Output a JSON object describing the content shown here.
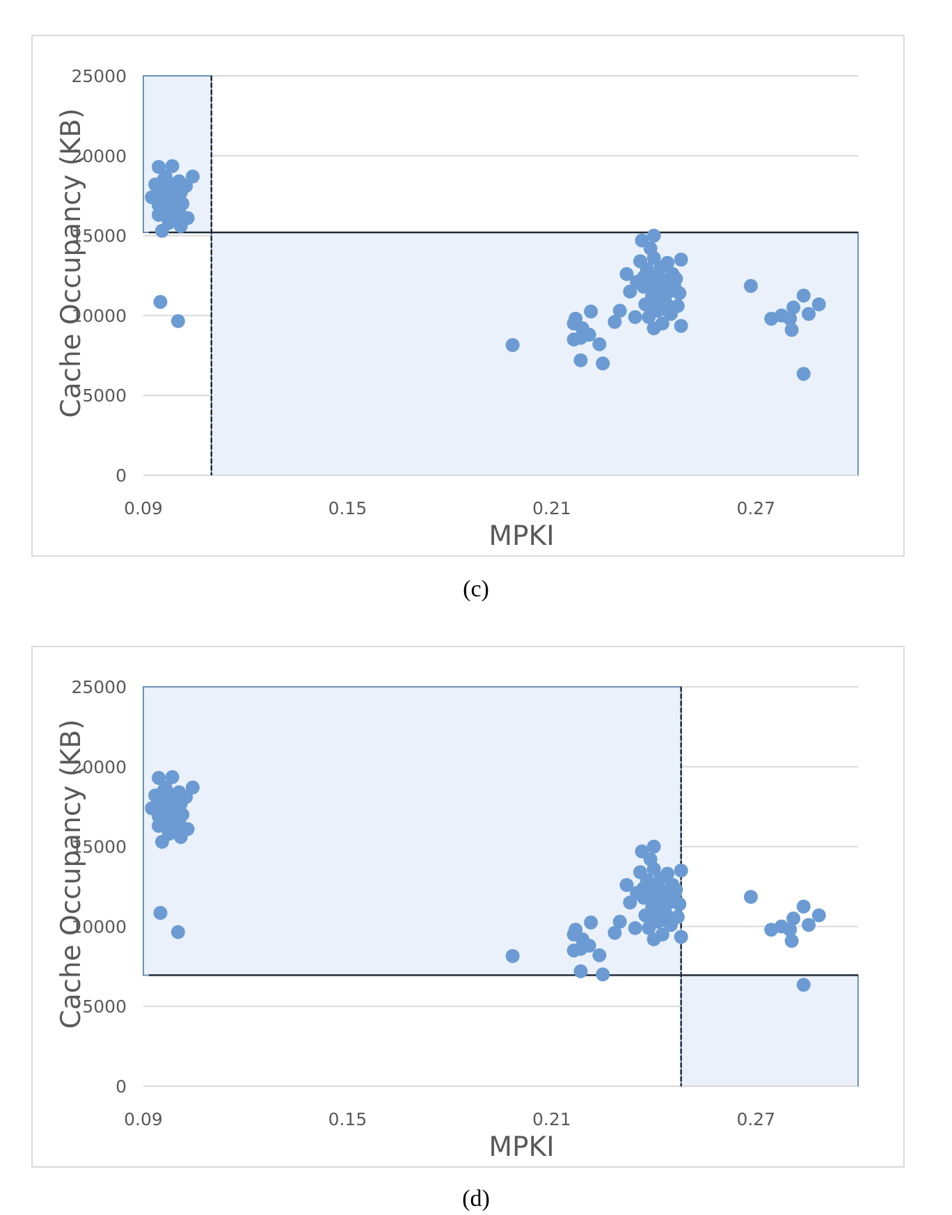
{
  "chart_data": [
    {
      "type": "scatter",
      "caption": "(c)",
      "xlabel": "MPKI",
      "ylabel": "Cache Occupancy (KB)",
      "xlim": [
        0.09,
        0.3
      ],
      "ylim": [
        0,
        25000
      ],
      "xticks": [
        "0.09",
        "0.15",
        "0.21",
        "0.27"
      ],
      "xtick_values": [
        0.09,
        0.15,
        0.21,
        0.27
      ],
      "yticks": [
        "0",
        "5000",
        "10000",
        "15000",
        "20000",
        "25000"
      ],
      "ytick_values": [
        0,
        5000,
        10000,
        15000,
        20000,
        25000
      ],
      "grid": "horizontal",
      "regions": [
        {
          "x0": 0.09,
          "x1": 0.11,
          "y0": 15200,
          "y1": 25000
        },
        {
          "x0": 0.11,
          "x1": 0.3,
          "y0": 0,
          "y1": 15200
        }
      ],
      "threshold_x": 0.11,
      "threshold_y": 15200,
      "points": [
        [
          0.0945,
          19300
        ],
        [
          0.0985,
          19350
        ],
        [
          0.0965,
          18700
        ],
        [
          0.1005,
          18400
        ],
        [
          0.1025,
          18100
        ],
        [
          0.1045,
          18700
        ],
        [
          0.0935,
          18200
        ],
        [
          0.0955,
          17900
        ],
        [
          0.0975,
          17600
        ],
        [
          0.0995,
          17300
        ],
        [
          0.1015,
          17000
        ],
        [
          0.0945,
          17500
        ],
        [
          0.0965,
          17100
        ],
        [
          0.0985,
          16800
        ],
        [
          0.0925,
          17400
        ],
        [
          0.0945,
          16900
        ],
        [
          0.1005,
          16500
        ],
        [
          0.0965,
          16300
        ],
        [
          0.0985,
          16100
        ],
        [
          0.103,
          16100
        ],
        [
          0.0945,
          16300
        ],
        [
          0.0955,
          15300
        ],
        [
          0.0975,
          15800
        ],
        [
          0.101,
          15600
        ],
        [
          0.0995,
          15900
        ],
        [
          0.0975,
          18300
        ],
        [
          0.0995,
          18000
        ],
        [
          0.101,
          17700
        ],
        [
          0.096,
          18500
        ],
        [
          0.0975,
          16500
        ],
        [
          0.095,
          10850
        ],
        [
          0.1002,
          9650
        ],
        [
          0.1985,
          8150
        ],
        [
          0.2165,
          9500
        ],
        [
          0.217,
          9800
        ],
        [
          0.2165,
          8500
        ],
        [
          0.2185,
          8600
        ],
        [
          0.219,
          9200
        ],
        [
          0.221,
          8800
        ],
        [
          0.224,
          8200
        ],
        [
          0.225,
          7000
        ],
        [
          0.2185,
          7200
        ],
        [
          0.2215,
          10250
        ],
        [
          0.2285,
          9600
        ],
        [
          0.23,
          10300
        ],
        [
          0.232,
          12600
        ],
        [
          0.233,
          11500
        ],
        [
          0.2345,
          9900
        ],
        [
          0.235,
          12100
        ],
        [
          0.236,
          13400
        ],
        [
          0.2365,
          14700
        ],
        [
          0.237,
          11800
        ],
        [
          0.2375,
          10700
        ],
        [
          0.238,
          12900
        ],
        [
          0.2385,
          9900
        ],
        [
          0.239,
          14200
        ],
        [
          0.2395,
          11200
        ],
        [
          0.24,
          15000
        ],
        [
          0.24,
          13600
        ],
        [
          0.2405,
          12500
        ],
        [
          0.241,
          10300
        ],
        [
          0.2415,
          11900
        ],
        [
          0.242,
          13000
        ],
        [
          0.2425,
          9500
        ],
        [
          0.243,
          12200
        ],
        [
          0.2435,
          10800
        ],
        [
          0.244,
          13300
        ],
        [
          0.2445,
          11500
        ],
        [
          0.245,
          10100
        ],
        [
          0.2455,
          12600
        ],
        [
          0.246,
          11900
        ],
        [
          0.2465,
          12300
        ],
        [
          0.247,
          10600
        ],
        [
          0.2475,
          11400
        ],
        [
          0.248,
          13500
        ],
        [
          0.248,
          9350
        ],
        [
          0.24,
          9200
        ],
        [
          0.2385,
          10600
        ],
        [
          0.2415,
          10900
        ],
        [
          0.2395,
          12000
        ],
        [
          0.243,
          11000
        ],
        [
          0.237,
          12400
        ],
        [
          0.245,
          11800
        ],
        [
          0.2405,
          11400
        ],
        [
          0.2425,
          10400
        ],
        [
          0.2685,
          11850
        ],
        [
          0.2745,
          9800
        ],
        [
          0.2775,
          10000
        ],
        [
          0.28,
          9800
        ],
        [
          0.2805,
          9100
        ],
        [
          0.281,
          10500
        ],
        [
          0.284,
          11250
        ],
        [
          0.2855,
          10100
        ],
        [
          0.2885,
          10700
        ],
        [
          0.284,
          6350
        ]
      ]
    },
    {
      "type": "scatter",
      "caption": "(d)",
      "xlabel": "MPKI",
      "ylabel": "Cache Occupancy (KB)",
      "xlim": [
        0.09,
        0.3
      ],
      "ylim": [
        0,
        25000
      ],
      "xticks": [
        "0.09",
        "0.15",
        "0.21",
        "0.27"
      ],
      "xtick_values": [
        0.09,
        0.15,
        0.21,
        0.27
      ],
      "yticks": [
        "0",
        "5000",
        "10000",
        "15000",
        "20000",
        "25000"
      ],
      "ytick_values": [
        0,
        5000,
        10000,
        15000,
        20000,
        25000
      ],
      "grid": "horizontal",
      "regions": [
        {
          "x0": 0.09,
          "x1": 0.248,
          "y0": 6950,
          "y1": 25000
        },
        {
          "x0": 0.248,
          "x1": 0.3,
          "y0": 0,
          "y1": 6950
        }
      ],
      "threshold_x": 0.248,
      "threshold_y": 6950,
      "points": [
        [
          0.0945,
          19300
        ],
        [
          0.0985,
          19350
        ],
        [
          0.0965,
          18700
        ],
        [
          0.1005,
          18400
        ],
        [
          0.1025,
          18100
        ],
        [
          0.1045,
          18700
        ],
        [
          0.0935,
          18200
        ],
        [
          0.0955,
          17900
        ],
        [
          0.0975,
          17600
        ],
        [
          0.0995,
          17300
        ],
        [
          0.1015,
          17000
        ],
        [
          0.0945,
          17500
        ],
        [
          0.0965,
          17100
        ],
        [
          0.0985,
          16800
        ],
        [
          0.0925,
          17400
        ],
        [
          0.0945,
          16900
        ],
        [
          0.1005,
          16500
        ],
        [
          0.0965,
          16300
        ],
        [
          0.0985,
          16100
        ],
        [
          0.103,
          16100
        ],
        [
          0.0945,
          16300
        ],
        [
          0.0955,
          15300
        ],
        [
          0.0975,
          15800
        ],
        [
          0.101,
          15600
        ],
        [
          0.0995,
          15900
        ],
        [
          0.0975,
          18300
        ],
        [
          0.0995,
          18000
        ],
        [
          0.101,
          17700
        ],
        [
          0.096,
          18500
        ],
        [
          0.0975,
          16500
        ],
        [
          0.095,
          10850
        ],
        [
          0.1002,
          9650
        ],
        [
          0.1985,
          8150
        ],
        [
          0.2165,
          9500
        ],
        [
          0.217,
          9800
        ],
        [
          0.2165,
          8500
        ],
        [
          0.2185,
          8600
        ],
        [
          0.219,
          9200
        ],
        [
          0.221,
          8800
        ],
        [
          0.224,
          8200
        ],
        [
          0.225,
          7000
        ],
        [
          0.2185,
          7200
        ],
        [
          0.2215,
          10250
        ],
        [
          0.2285,
          9600
        ],
        [
          0.23,
          10300
        ],
        [
          0.232,
          12600
        ],
        [
          0.233,
          11500
        ],
        [
          0.2345,
          9900
        ],
        [
          0.235,
          12100
        ],
        [
          0.236,
          13400
        ],
        [
          0.2365,
          14700
        ],
        [
          0.237,
          11800
        ],
        [
          0.2375,
          10700
        ],
        [
          0.238,
          12900
        ],
        [
          0.2385,
          9900
        ],
        [
          0.239,
          14200
        ],
        [
          0.2395,
          11200
        ],
        [
          0.24,
          15000
        ],
        [
          0.24,
          13600
        ],
        [
          0.2405,
          12500
        ],
        [
          0.241,
          10300
        ],
        [
          0.2415,
          11900
        ],
        [
          0.242,
          13000
        ],
        [
          0.2425,
          9500
        ],
        [
          0.243,
          12200
        ],
        [
          0.2435,
          10800
        ],
        [
          0.244,
          13300
        ],
        [
          0.2445,
          11500
        ],
        [
          0.245,
          10100
        ],
        [
          0.2455,
          12600
        ],
        [
          0.246,
          11900
        ],
        [
          0.2465,
          12300
        ],
        [
          0.247,
          10600
        ],
        [
          0.2475,
          11400
        ],
        [
          0.248,
          13500
        ],
        [
          0.248,
          9350
        ],
        [
          0.24,
          9200
        ],
        [
          0.2385,
          10600
        ],
        [
          0.2415,
          10900
        ],
        [
          0.2395,
          12000
        ],
        [
          0.243,
          11000
        ],
        [
          0.237,
          12400
        ],
        [
          0.245,
          11800
        ],
        [
          0.2405,
          11400
        ],
        [
          0.2425,
          10400
        ],
        [
          0.2685,
          11850
        ],
        [
          0.2745,
          9800
        ],
        [
          0.2775,
          10000
        ],
        [
          0.28,
          9800
        ],
        [
          0.2805,
          9100
        ],
        [
          0.281,
          10500
        ],
        [
          0.284,
          11250
        ],
        [
          0.2855,
          10100
        ],
        [
          0.2885,
          10700
        ],
        [
          0.284,
          6350
        ]
      ]
    }
  ],
  "colors": {
    "point": "#6b9bd2",
    "region_fill": "#eaf1fa",
    "region_stroke": "#6d8fb6",
    "threshold_line": "#1f2a36",
    "grid": "#d9d9d9",
    "axis_text": "#595959"
  }
}
